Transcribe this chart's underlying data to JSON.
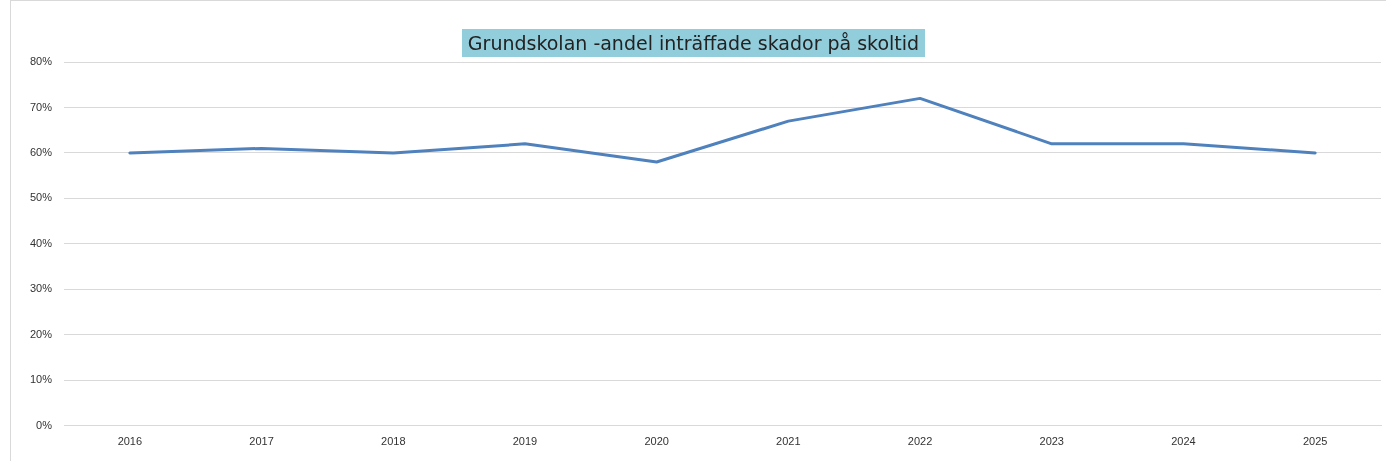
{
  "chart_data": {
    "type": "line",
    "title": "Grundskolan -andel inträffade skador på skoltid",
    "categories": [
      "2016",
      "2017",
      "2018",
      "2019",
      "2020",
      "2021",
      "2022",
      "2023",
      "2024",
      "2025"
    ],
    "series": [
      {
        "color": "#4f81bd",
        "values": [
          60,
          61,
          60,
          62,
          58,
          67,
          72,
          62,
          62,
          60
        ]
      }
    ],
    "ylim": [
      0,
      80
    ],
    "yticks": [
      {
        "value": 0,
        "label": "0%"
      },
      {
        "value": 10,
        "label": "10%"
      },
      {
        "value": 20,
        "label": "20%"
      },
      {
        "value": 30,
        "label": "30%"
      },
      {
        "value": 40,
        "label": "40%"
      },
      {
        "value": 50,
        "label": "50%"
      },
      {
        "value": 60,
        "label": "60%"
      },
      {
        "value": 70,
        "label": "70%"
      },
      {
        "value": 80,
        "label": "80%"
      }
    ],
    "grid": "y",
    "legend": false,
    "marker": "none",
    "line_style": "solid"
  }
}
